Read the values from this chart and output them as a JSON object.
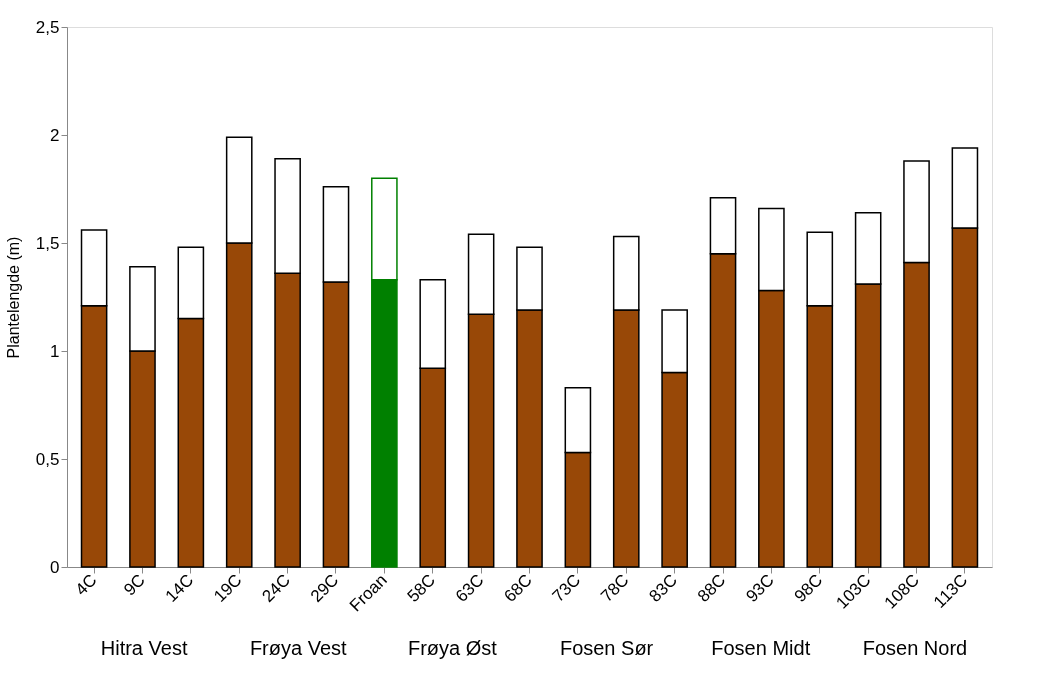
{
  "chart_data": {
    "type": "bar",
    "stacked": true,
    "ylabel": "Plantelengde (m)",
    "categories": [
      "4C",
      "9C",
      "14C",
      "19C",
      "24C",
      "29C",
      "Froan",
      "58C",
      "63C",
      "68C",
      "73C",
      "78C",
      "83C",
      "88C",
      "93C",
      "98C",
      "103C",
      "108C",
      "113C"
    ],
    "series": [
      {
        "colors": [
          "#984807",
          "#984807",
          "#984807",
          "#984807",
          "#984807",
          "#984807",
          "#008000",
          "#984807",
          "#984807",
          "#984807",
          "#984807",
          "#984807",
          "#984807",
          "#984807",
          "#984807",
          "#984807",
          "#984807",
          "#984807",
          "#984807"
        ],
        "values": [
          1.21,
          1.0,
          1.15,
          1.5,
          1.36,
          1.32,
          1.33,
          0.92,
          1.17,
          1.19,
          0.53,
          1.19,
          0.9,
          1.45,
          1.28,
          1.21,
          1.31,
          1.41,
          1.57
        ]
      },
      {
        "color": "#ffffff",
        "values": [
          0.35,
          0.39,
          0.33,
          0.49,
          0.53,
          0.44,
          0.47,
          0.41,
          0.37,
          0.29,
          0.3,
          0.34,
          0.29,
          0.26,
          0.38,
          0.34,
          0.33,
          0.47,
          0.37
        ]
      }
    ],
    "ylim": [
      0,
      2.5
    ],
    "yticks": [
      0,
      {
        "value": 0.5,
        "label": "0,5"
      },
      1,
      {
        "value": 1.5,
        "label": "1,5"
      },
      2,
      {
        "value": 2.5,
        "label": "2,5"
      }
    ],
    "grid": false,
    "annotations": [
      "Hitra Vest",
      "Frøya Vest",
      "Frøya Øst",
      "Fosen Sør",
      "Fosen Midt",
      "Fosen Nord"
    ]
  }
}
